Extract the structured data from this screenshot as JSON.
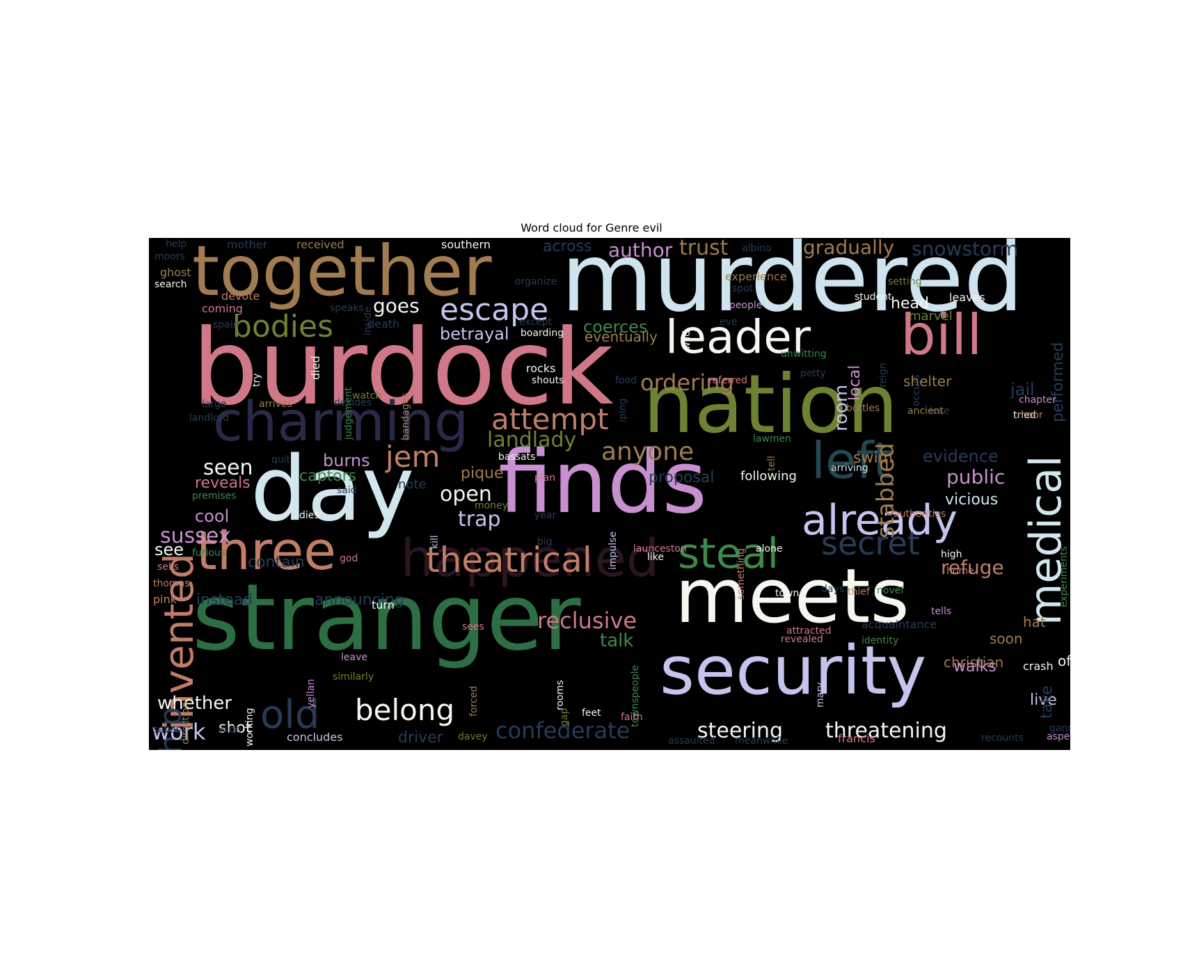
{
  "title": "Word cloud for Genre evil",
  "words": [
    {
      "text": "burdock",
      "color": "#d07888"
    },
    {
      "text": "murdered",
      "color": "#cfe4ee"
    },
    {
      "text": "nation",
      "color": "#6e8234"
    },
    {
      "text": "finds",
      "color": "#c890d0"
    },
    {
      "text": "stranger",
      "color": "#2e6e44"
    },
    {
      "text": "meets",
      "color": "#f4f8f0"
    },
    {
      "text": "day",
      "color": "#d2e6ee"
    },
    {
      "text": "together",
      "color": "#a07c50"
    },
    {
      "text": "security",
      "color": "#c4c4ee"
    },
    {
      "text": "charming",
      "color": "#2a2a48"
    },
    {
      "text": "happened",
      "color": "#2a1620"
    },
    {
      "text": "bill",
      "color": "#d07888"
    },
    {
      "text": "left",
      "color": "#244850"
    },
    {
      "text": "medical",
      "color": "#d2e6ee"
    },
    {
      "text": "three",
      "color": "#c07e68"
    },
    {
      "text": "invented",
      "color": "#c07e68"
    },
    {
      "text": "already",
      "color": "#c4c4ee"
    },
    {
      "text": "leader",
      "color": "#f4f8f0"
    },
    {
      "text": "theatrical",
      "color": "#c07e68"
    },
    {
      "text": "steal",
      "color": "#3e8a4a"
    },
    {
      "text": "escape",
      "color": "#c4c4ee"
    },
    {
      "text": "attempt",
      "color": "#c07e68"
    },
    {
      "text": "secret",
      "color": "#283c58"
    },
    {
      "text": "old",
      "color": "#283c58"
    },
    {
      "text": "belong",
      "color": "#f4f8f0"
    },
    {
      "text": "bodies",
      "color": "#6e8234"
    },
    {
      "text": "ship",
      "color": "#283c58"
    },
    {
      "text": "anyone",
      "color": "#a07c50"
    },
    {
      "text": "ordering",
      "color": "#a07c50"
    },
    {
      "text": "jem",
      "color": "#c07e68"
    },
    {
      "text": "reclusive",
      "color": "#d07888"
    },
    {
      "text": "stabbed",
      "color": "#a07c50"
    },
    {
      "text": "confederate",
      "color": "#283c58"
    },
    {
      "text": "steering",
      "color": "#f4f8f0"
    },
    {
      "text": "threatening",
      "color": "#f4f8f0"
    },
    {
      "text": "gradually",
      "color": "#a07c50"
    },
    {
      "text": "snowstorm",
      "color": "#283c58"
    },
    {
      "text": "trust",
      "color": "#a07c50"
    },
    {
      "text": "author",
      "color": "#c890d0"
    },
    {
      "text": "across",
      "color": "#283c58"
    },
    {
      "text": "refuge",
      "color": "#c07e68"
    },
    {
      "text": "landlady",
      "color": "#6e8234"
    },
    {
      "text": "trap",
      "color": "#c4c4ee"
    },
    {
      "text": "public",
      "color": "#c890d0"
    },
    {
      "text": "vicious",
      "color": "#d2e6ee"
    },
    {
      "text": "evidence",
      "color": "#283c58"
    },
    {
      "text": "jail",
      "color": "#283c58"
    },
    {
      "text": "work",
      "color": "#c4c4ee"
    },
    {
      "text": "whether",
      "color": "#f4f8f0"
    },
    {
      "text": "sussex",
      "color": "#c890d0"
    },
    {
      "text": "seen",
      "color": "#f4f8f0"
    },
    {
      "text": "open",
      "color": "#f4f8f0"
    },
    {
      "text": "goes",
      "color": "#f4f8f0"
    },
    {
      "text": "betrayal",
      "color": "#c4c4ee"
    },
    {
      "text": "coerces",
      "color": "#3e8a4a"
    },
    {
      "text": "eventually",
      "color": "#a07c50"
    },
    {
      "text": "room",
      "color": "#c4c4ee"
    },
    {
      "text": "local",
      "color": "#c890d0"
    },
    {
      "text": "shelter",
      "color": "#a07c50"
    },
    {
      "text": "head",
      "color": "#f4f8f0"
    },
    {
      "text": "leaves",
      "color": "#f4f8f0"
    },
    {
      "text": "performed",
      "color": "#283c58"
    },
    {
      "text": "chapter",
      "color": "#c890d0"
    },
    {
      "text": "tried",
      "color": "#f4f8f0"
    },
    {
      "text": "swim",
      "color": "#a07c50"
    },
    {
      "text": "proposal",
      "color": "#283c58"
    },
    {
      "text": "following",
      "color": "#f4f8f0"
    },
    {
      "text": "arriving",
      "color": "#d2e6ee"
    },
    {
      "text": "burns",
      "color": "#c890d0"
    },
    {
      "text": "captors",
      "color": "#3e8a4a"
    },
    {
      "text": "note",
      "color": "#283c58"
    },
    {
      "text": "pique",
      "color": "#a07c50"
    },
    {
      "text": "reveals",
      "color": "#d07888"
    },
    {
      "text": "cool",
      "color": "#c890d0"
    },
    {
      "text": "see",
      "color": "#f4f8f0"
    },
    {
      "text": "contain",
      "color": "#283c58"
    },
    {
      "text": "instead",
      "color": "#283c58"
    },
    {
      "text": "announcing",
      "color": "#283c58"
    },
    {
      "text": "talk",
      "color": "#3e8a4a"
    },
    {
      "text": "shot",
      "color": "#f4f8f0"
    },
    {
      "text": "driver",
      "color": "#283c58"
    },
    {
      "text": "christian",
      "color": "#a07c50"
    },
    {
      "text": "crash",
      "color": "#f4f8f0"
    },
    {
      "text": "offers",
      "color": "#f4f8f0"
    },
    {
      "text": "walks",
      "color": "#c890d0"
    },
    {
      "text": "live",
      "color": "#c4c4ee"
    },
    {
      "text": "soon",
      "color": "#a07c50"
    },
    {
      "text": "hat",
      "color": "#a07c50"
    },
    {
      "text": "take",
      "color": "#283c58"
    },
    {
      "text": "southern",
      "color": "#f4f8f0"
    },
    {
      "text": "received",
      "color": "#a07c50"
    },
    {
      "text": "mother",
      "color": "#283c58"
    },
    {
      "text": "albino",
      "color": "#283c58"
    },
    {
      "text": "ghost",
      "color": "#a07c50"
    },
    {
      "text": "search",
      "color": "#f4f8f0"
    },
    {
      "text": "devote",
      "color": "#c07e68"
    },
    {
      "text": "coming",
      "color": "#d07888"
    },
    {
      "text": "spain",
      "color": "#283c58"
    },
    {
      "text": "death",
      "color": "#283c58"
    },
    {
      "text": "except",
      "color": "#283c58"
    },
    {
      "text": "boarding",
      "color": "#f4f8f0"
    },
    {
      "text": "organize",
      "color": "#283c58"
    },
    {
      "text": "inside",
      "color": "#283c58"
    },
    {
      "text": "wild",
      "color": "#f4f8f0"
    },
    {
      "text": "experience",
      "color": "#a07c50"
    },
    {
      "text": "spot",
      "color": "#283c58"
    },
    {
      "text": "people",
      "color": "#c890d0"
    },
    {
      "text": "eve",
      "color": "#283c58"
    },
    {
      "text": "student",
      "color": "#f4f8f0"
    },
    {
      "text": "setting",
      "color": "#6e8234"
    },
    {
      "text": "marvel",
      "color": "#6e8234"
    },
    {
      "text": "reign",
      "color": "#283c58"
    },
    {
      "text": "occurs",
      "color": "#283c58"
    },
    {
      "text": "unwitting",
      "color": "#3e8a4a"
    },
    {
      "text": "petty",
      "color": "#283c58"
    },
    {
      "text": "food",
      "color": "#283c58"
    },
    {
      "text": "referred",
      "color": "#d07888"
    },
    {
      "text": "rocks",
      "color": "#f4f8f0"
    },
    {
      "text": "shouts",
      "color": "#f4f8f0"
    },
    {
      "text": "iping",
      "color": "#283c58"
    },
    {
      "text": "bandages",
      "color": "#a07c50"
    },
    {
      "text": "died",
      "color": "#f4f8f0"
    },
    {
      "text": "judgement",
      "color": "#3e8a4a"
    },
    {
      "text": "watch",
      "color": "#6e8234"
    },
    {
      "text": "large",
      "color": "#283c58"
    },
    {
      "text": "arrives",
      "color": "#a07c50"
    },
    {
      "text": "landlord",
      "color": "#283c58"
    },
    {
      "text": "try",
      "color": "#f4f8f0"
    },
    {
      "text": "decides",
      "color": "#283c58"
    },
    {
      "text": "lose",
      "color": "#283c58"
    },
    {
      "text": "bottles",
      "color": "#a07c50"
    },
    {
      "text": "ancient",
      "color": "#a07c50"
    },
    {
      "text": "moor",
      "color": "#c07e68"
    },
    {
      "text": "lawmen",
      "color": "#3e8a4a"
    },
    {
      "text": "tell",
      "color": "#a07c50"
    },
    {
      "text": "bassats",
      "color": "#f4f8f0"
    },
    {
      "text": "quit",
      "color": "#283c58"
    },
    {
      "text": "premises",
      "color": "#3e8a4a"
    },
    {
      "text": "said",
      "color": "#283c58"
    },
    {
      "text": "plan",
      "color": "#d07888"
    },
    {
      "text": "money",
      "color": "#6e8234"
    },
    {
      "text": "impulse",
      "color": "#c4c4ee"
    },
    {
      "text": "something",
      "color": "#c07e68"
    },
    {
      "text": "dies",
      "color": "#f4f8f0"
    },
    {
      "text": "kill",
      "color": "#c4c4ee"
    },
    {
      "text": "year",
      "color": "#283c58"
    },
    {
      "text": "big",
      "color": "#283c58"
    },
    {
      "text": "furious",
      "color": "#3e8a4a"
    },
    {
      "text": "sells",
      "color": "#d07888"
    },
    {
      "text": "god",
      "color": "#d07888"
    },
    {
      "text": "launceston",
      "color": "#d07888"
    },
    {
      "text": "like",
      "color": "#f4f8f0"
    },
    {
      "text": "alone",
      "color": "#f4f8f0"
    },
    {
      "text": "authorities",
      "color": "#c07e68"
    },
    {
      "text": "experiments",
      "color": "#3e8a4a"
    },
    {
      "text": "high",
      "color": "#f4f8f0"
    },
    {
      "text": "thomas",
      "color": "#c07e68"
    },
    {
      "text": "pink",
      "color": "#c07e68"
    },
    {
      "text": "turn",
      "color": "#f4f8f0"
    },
    {
      "text": "days",
      "color": "#283c58"
    },
    {
      "text": "town",
      "color": "#f4f8f0"
    },
    {
      "text": "thief",
      "color": "#c07e68"
    },
    {
      "text": "novel",
      "color": "#3e8a4a"
    },
    {
      "text": "home",
      "color": "#c07e68"
    },
    {
      "text": "tells",
      "color": "#c890d0"
    },
    {
      "text": "acquaintance",
      "color": "#283c58"
    },
    {
      "text": "sees",
      "color": "#d07888"
    },
    {
      "text": "attracted",
      "color": "#d07888"
    },
    {
      "text": "revealed",
      "color": "#d07888"
    },
    {
      "text": "identity",
      "color": "#3e8a4a"
    },
    {
      "text": "direction",
      "color": "#a07c50"
    },
    {
      "text": "working",
      "color": "#f4f8f0"
    },
    {
      "text": "yellan",
      "color": "#c890d0"
    },
    {
      "text": "leave",
      "color": "#c890d0"
    },
    {
      "text": "similarly",
      "color": "#6e8234"
    },
    {
      "text": "forced",
      "color": "#a07c50"
    },
    {
      "text": "rooms",
      "color": "#f4f8f0"
    },
    {
      "text": "townspeople",
      "color": "#3e8a4a"
    },
    {
      "text": "mary",
      "color": "#c4c4ee"
    },
    {
      "text": "gap",
      "color": "#6e8234"
    },
    {
      "text": "feet",
      "color": "#f4f8f0"
    },
    {
      "text": "faith",
      "color": "#d07888"
    },
    {
      "text": "saves",
      "color": "#283c58"
    },
    {
      "text": "wide",
      "color": "#283c58"
    },
    {
      "text": "concludes",
      "color": "#c4c4ee"
    },
    {
      "text": "davey",
      "color": "#6e8234"
    },
    {
      "text": "assaulted",
      "color": "#283c58"
    },
    {
      "text": "meanwhile",
      "color": "#283c58"
    },
    {
      "text": "francis",
      "color": "#d07888"
    },
    {
      "text": "recounts",
      "color": "#283c58"
    },
    {
      "text": "aspects",
      "color": "#c890d0"
    },
    {
      "text": "gang",
      "color": "#283c58"
    },
    {
      "text": "help",
      "color": "#283c58"
    },
    {
      "text": "moors",
      "color": "#283c58"
    },
    {
      "text": "speaks",
      "color": "#283c58"
    }
  ]
}
